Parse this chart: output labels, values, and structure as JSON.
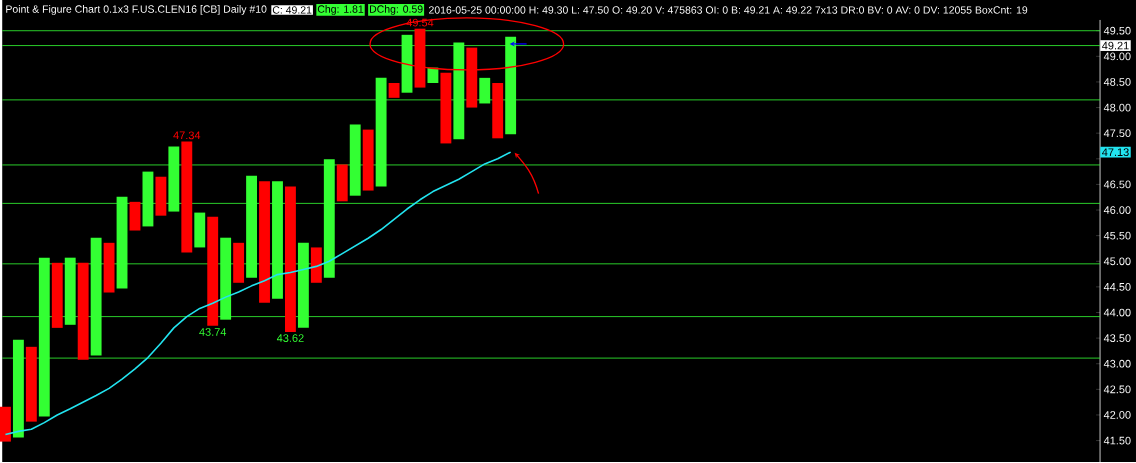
{
  "chart_data": {
    "type": "bar",
    "title": "Point & Figure Chart 0.1x3 F.US.CLEN16 [CB] Daily #10",
    "annotations": [
      "C: 49.21",
      "Chg: 1.81",
      "DChg: 0.59",
      "2016-05-25 00:00:00 H: 49.30 L: 47.50 O: 49.20 V: 475863 OI: 0 B: 49.21 A: 49.22 7x13 DR:0 BV: 0 AV: 0 DV: 12055 BoxCnt: 19",
      {
        "text": "47.34",
        "y": 47.34
      },
      {
        "text": "43.74",
        "y": 43.74
      },
      {
        "text": "43.62",
        "y": 43.62
      },
      {
        "text": "49.54",
        "y": 49.54
      },
      {
        "text": "47.13",
        "y": 47.13
      }
    ],
    "categories": [
      null,
      null,
      null,
      null,
      null,
      null,
      null,
      null,
      null,
      null,
      null,
      null,
      null,
      null,
      null,
      null,
      null,
      null,
      null,
      null,
      null,
      null,
      null,
      null,
      null,
      null,
      null,
      null,
      null,
      null,
      null,
      null,
      null,
      null,
      null,
      null,
      null,
      null,
      null,
      null,
      null,
      null,
      null,
      null,
      null,
      null,
      null,
      null,
      null,
      null,
      null,
      null,
      null,
      null,
      null,
      null,
      null,
      null,
      null,
      null,
      null,
      null,
      null,
      null,
      null,
      null,
      null,
      null,
      null,
      null,
      null,
      null,
      null,
      null,
      null,
      null,
      null,
      null,
      null,
      null,
      null,
      null,
      null,
      null,
      null
    ],
    "series": [
      {
        "base": [
          41.48,
          41.56,
          41.87,
          41.97,
          43.7,
          43.76,
          43.08,
          43.16,
          44.39,
          44.47,
          45.6,
          45.68,
          45.89,
          45.97,
          45.17,
          45.27,
          43.74,
          43.86,
          44.58,
          44.68,
          44.19,
          44.27,
          43.62,
          43.7,
          44.58,
          44.68,
          46.17,
          46.28,
          46.38,
          46.46,
          48.19,
          48.29,
          48.39,
          48.48,
          47.3,
          47.38,
          48.0,
          48.08,
          47.4,
          47.48,
          null,
          null,
          null,
          null,
          null,
          null,
          null,
          null,
          null,
          null,
          null,
          null,
          null,
          null,
          null,
          null,
          null,
          null,
          null,
          null,
          null,
          null,
          null,
          null,
          null,
          null,
          null,
          null,
          null,
          null,
          null,
          null,
          null,
          null,
          null,
          null,
          null,
          null,
          null,
          null,
          null,
          null,
          null,
          null,
          null
        ],
        "values": [
          0.68,
          1.91,
          1.46,
          3.1,
          1.27,
          1.31,
          1.89,
          2.3,
          0.97,
          1.79,
          0.56,
          1.07,
          0.76,
          1.27,
          2.17,
          0.68,
          2.13,
          1.6,
          0.78,
          1.99,
          2.37,
          2.29,
          2.84,
          1.66,
          0.69,
          2.31,
          0.72,
          1.39,
          1.19,
          2.12,
          0.29,
          1.13,
          1.15,
          0.3,
          1.38,
          1.89,
          1.17,
          0.5,
          1.08,
          1.9,
          null,
          null,
          null,
          null,
          null,
          null,
          null,
          null,
          null,
          null,
          null,
          null,
          null,
          null,
          null,
          null,
          null,
          null,
          null,
          null,
          null,
          null,
          null,
          null,
          null,
          null,
          null,
          null,
          null,
          null,
          null,
          null,
          null,
          null,
          null,
          null,
          null,
          null,
          null,
          null,
          null,
          null,
          null,
          null,
          null
        ],
        "colors": [
          "#ff0000",
          "#33ff33",
          "#ff0000",
          "#33ff33",
          "#ff0000",
          "#33ff33",
          "#ff0000",
          "#33ff33",
          "#ff0000",
          "#33ff33",
          "#ff0000",
          "#33ff33",
          "#ff0000",
          "#33ff33",
          "#ff0000",
          "#33ff33",
          "#ff0000",
          "#33ff33",
          "#ff0000",
          "#33ff33",
          "#ff0000",
          "#33ff33",
          "#ff0000",
          "#33ff33",
          "#ff0000",
          "#33ff33",
          "#ff0000",
          "#33ff33",
          "#ff0000",
          "#33ff33",
          "#ff0000",
          "#33ff33",
          "#ff0000",
          "#33ff33",
          "#ff0000",
          "#33ff33",
          "#ff0000",
          "#33ff33",
          "#ff0000",
          "#33ff33",
          null,
          null,
          null,
          null,
          null,
          null,
          null,
          null,
          null,
          null,
          null,
          null,
          null,
          null,
          null,
          null,
          null,
          null,
          null,
          null,
          null,
          null,
          null,
          null,
          null,
          null,
          null,
          null,
          null,
          null,
          null,
          null,
          null,
          null,
          null,
          null,
          null,
          null,
          null,
          null,
          null,
          null,
          null,
          null,
          null
        ]
      },
      {
        "type": "line",
        "color": "#22e4f0",
        "values": [
          41.62,
          41.68,
          41.72,
          41.85,
          42.0,
          42.12,
          42.25,
          42.38,
          42.52,
          42.7,
          42.9,
          43.12,
          43.4,
          43.7,
          43.92,
          44.08,
          44.18,
          44.3,
          44.4,
          44.52,
          44.62,
          44.74,
          44.78,
          44.84,
          44.9,
          45.0,
          45.15,
          45.3,
          45.45,
          45.62,
          45.82,
          46.02,
          46.2,
          46.36,
          46.48,
          46.6,
          46.75,
          46.9,
          47.0,
          47.13,
          null,
          null,
          null,
          null,
          null,
          null,
          null,
          null,
          null,
          null,
          null,
          null,
          null,
          null,
          null,
          null,
          null,
          null,
          null,
          null,
          null,
          null,
          null,
          null,
          null,
          null,
          null,
          null,
          null,
          null,
          null,
          null,
          null,
          null,
          null,
          null,
          null,
          null,
          null,
          null,
          null,
          null,
          null,
          null,
          null
        ]
      }
    ],
    "ref_lines": [
      {
        "axis": "y",
        "value": 49.5,
        "color": "#33ff33"
      },
      {
        "axis": "y",
        "value": 49.21,
        "color": "#33ff33",
        "label": "49.21"
      },
      {
        "axis": "y",
        "value": 48.15,
        "color": "#33ff33"
      },
      {
        "axis": "y",
        "value": 46.88,
        "color": "#33ff33"
      },
      {
        "axis": "y",
        "value": 46.13,
        "color": "#33ff33"
      },
      {
        "axis": "y",
        "value": 44.95,
        "color": "#33ff33"
      },
      {
        "axis": "y",
        "value": 43.92,
        "color": "#33ff33"
      },
      {
        "axis": "y",
        "value": 43.11,
        "color": "#33ff33"
      }
    ],
    "ylim": [
      41.08,
      49.71
    ],
    "yticks": [
      {
        "value": 41.5,
        "label": "41.50"
      },
      {
        "value": 42,
        "label": "42.00"
      },
      {
        "value": 42.5,
        "label": "42.50"
      },
      {
        "value": 43,
        "label": "43.00"
      },
      {
        "value": 43.5,
        "label": "43.50"
      },
      {
        "value": 44,
        "label": "44.00"
      },
      {
        "value": 44.5,
        "label": "44.50"
      },
      {
        "value": 45,
        "label": "45.00"
      },
      {
        "value": 45.5,
        "label": "45.50"
      },
      {
        "value": 46,
        "label": "46.00"
      },
      {
        "value": 46.5,
        "label": "46.50"
      },
      {
        "value": 47,
        "label": null
      },
      {
        "value": 47.5,
        "label": "47.50"
      },
      {
        "value": 48,
        "label": "48.00"
      },
      {
        "value": 48.5,
        "label": "48.50"
      },
      {
        "value": 49,
        "label": "49.00"
      },
      {
        "value": 49.5,
        "label": "49.50"
      }
    ],
    "tick_labels": "y",
    "grid": false
  }
}
